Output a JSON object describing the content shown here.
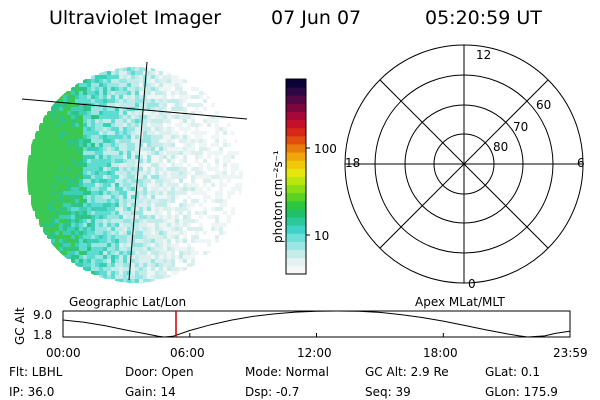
{
  "header": {
    "instrument": "Ultraviolet Imager",
    "date": "07 Jun 07",
    "time": "05:20:59 UT"
  },
  "colorbar": {
    "unit_label": "photon cm⁻²s⁻¹",
    "ticks": [
      "100",
      "10"
    ],
    "colors": [
      "#f6f6f6",
      "#e4f2f2",
      "#c6ecea",
      "#9ee6e4",
      "#6ddfd8",
      "#3fd3c7",
      "#2bc99a",
      "#1fc06c",
      "#2cc63f",
      "#5ad223",
      "#8ade13",
      "#bce60e",
      "#e6e60c",
      "#f2c80b",
      "#f0a60a",
      "#ea7a0c",
      "#e04e10",
      "#d6281a",
      "#c4102a",
      "#a6083a",
      "#7c063e",
      "#520844",
      "#2c0844",
      "#0a0436"
    ]
  },
  "polar": {
    "ring_labels": [
      "60",
      "70",
      "80"
    ],
    "mlt_labels": {
      "top": "12",
      "left": "18",
      "right": "6",
      "bottom": "0"
    }
  },
  "panel_labels": {
    "left": "Geographic Lat/Lon",
    "right": "Apex MLat/MLT"
  },
  "orbit_plot": {
    "ylabel": "GC Alt",
    "y_ticks": [
      "9.0",
      "1.8"
    ],
    "x_ticks": [
      "00:00",
      "06:00",
      "12:00",
      "18:00",
      "23:59"
    ],
    "ylim": [
      1.8,
      9.0
    ],
    "current_time_hours": 5.35,
    "marker_color": "#cc0000",
    "curve_points": [
      {
        "t": 0.0,
        "alt": 6.5
      },
      {
        "t": 1.0,
        "alt": 5.9
      },
      {
        "t": 2.0,
        "alt": 4.9
      },
      {
        "t": 3.0,
        "alt": 3.7
      },
      {
        "t": 4.0,
        "alt": 2.6
      },
      {
        "t": 4.5,
        "alt": 2.0
      },
      {
        "t": 4.8,
        "alt": 1.8
      },
      {
        "t": 5.2,
        "alt": 2.0
      },
      {
        "t": 6.0,
        "alt": 3.6
      },
      {
        "t": 7.0,
        "alt": 5.2
      },
      {
        "t": 8.0,
        "alt": 6.5
      },
      {
        "t": 9.0,
        "alt": 7.5
      },
      {
        "t": 10.0,
        "alt": 8.2
      },
      {
        "t": 11.0,
        "alt": 8.7
      },
      {
        "t": 12.0,
        "alt": 8.95
      },
      {
        "t": 13.0,
        "alt": 9.0
      },
      {
        "t": 14.0,
        "alt": 8.95
      },
      {
        "t": 15.0,
        "alt": 8.6
      },
      {
        "t": 16.0,
        "alt": 8.0
      },
      {
        "t": 17.0,
        "alt": 7.2
      },
      {
        "t": 18.0,
        "alt": 6.2
      },
      {
        "t": 19.0,
        "alt": 5.0
      },
      {
        "t": 20.0,
        "alt": 3.8
      },
      {
        "t": 21.0,
        "alt": 2.7
      },
      {
        "t": 21.6,
        "alt": 2.1
      },
      {
        "t": 22.0,
        "alt": 1.8
      },
      {
        "t": 22.8,
        "alt": 2.1
      },
      {
        "t": 23.3,
        "alt": 2.8
      },
      {
        "t": 23.98,
        "alt": 3.4
      }
    ]
  },
  "info": {
    "flt": "Flt: LBHL",
    "door": "Door: Open",
    "mode": "Mode: Normal",
    "gc_alt": "GC Alt: 2.9 Re",
    "glat": "GLat:   0.1",
    "ip": "IP: 36.0",
    "gain": "Gain: 14",
    "dsp": "Dsp:   -0.7",
    "seq": "Seq: 39",
    "glon": "GLon: 175.9"
  }
}
